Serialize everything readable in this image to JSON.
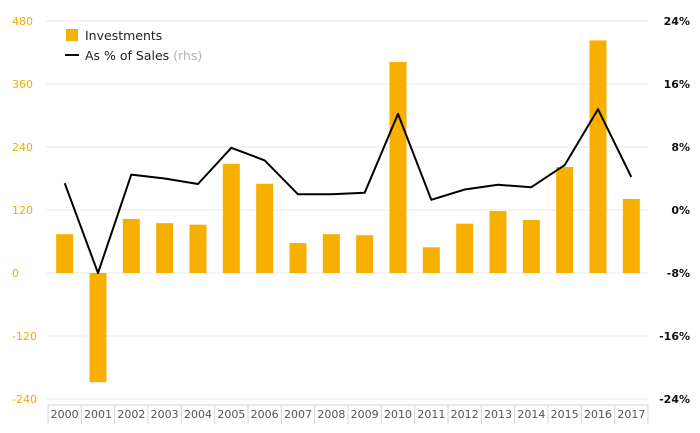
{
  "chart_data": {
    "type": "bar",
    "categories": [
      "2000",
      "2001",
      "2002",
      "2003",
      "2004",
      "2005",
      "2006",
      "2007",
      "2008",
      "2009",
      "2010",
      "2011",
      "2012",
      "2013",
      "2014",
      "2015",
      "2016",
      "2017"
    ],
    "series": [
      {
        "name": "Investments",
        "type": "bar",
        "axis": "left",
        "color": "#f7b000",
        "values": [
          74,
          -208,
          103,
          95,
          92,
          208,
          170,
          57,
          74,
          72,
          402,
          49,
          94,
          118,
          101,
          202,
          443,
          141
        ]
      },
      {
        "name": "As % of Sales",
        "name_suffix": "(rhs)",
        "type": "line",
        "axis": "right",
        "color": "#000000",
        "values": [
          3.4,
          -8.0,
          4.5,
          4.0,
          3.3,
          7.9,
          6.3,
          2.0,
          2.0,
          2.2,
          12.2,
          1.3,
          2.6,
          3.2,
          2.9,
          5.7,
          12.8,
          4.2
        ]
      }
    ],
    "y_left": {
      "ylim": [
        -240,
        480
      ],
      "ticks": [
        "480",
        "360",
        "240",
        "120",
        "0",
        "-120",
        "-240"
      ]
    },
    "y_right": {
      "ylim": [
        -24,
        24
      ],
      "ticks": [
        "24%",
        "16%",
        "8%",
        "0%",
        "-8%",
        "-16%",
        "-24%"
      ]
    },
    "grid": true,
    "legend": "top-left"
  }
}
